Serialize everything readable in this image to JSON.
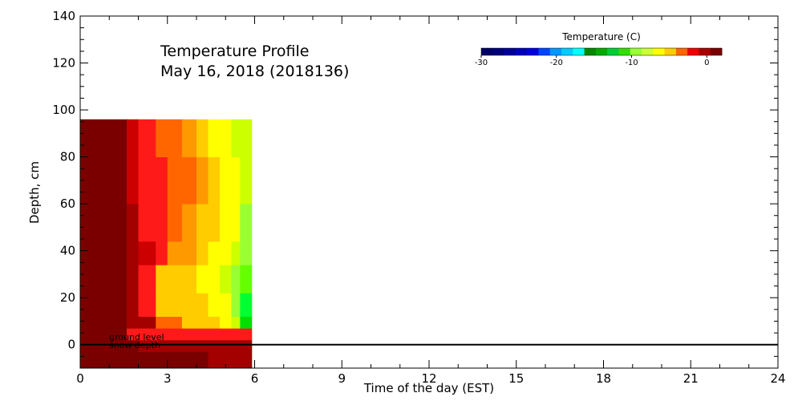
{
  "chart_data": {
    "type": "heatmap",
    "title": [
      "Temperature Profile",
      "May 16, 2018 (2018136)"
    ],
    "xlabel": "Time of the day (EST)",
    "ylabel": "Depth, cm",
    "xlim": [
      0,
      24
    ],
    "ylim": [
      -10,
      140
    ],
    "xticks": [
      0,
      3,
      6,
      9,
      12,
      15,
      18,
      21,
      24
    ],
    "yticks": [
      0,
      20,
      40,
      60,
      80,
      100,
      120,
      140
    ],
    "data_extent": {
      "x": [
        0,
        5.9
      ],
      "y": [
        -10,
        96
      ]
    },
    "depth_bands": [
      -10,
      -3,
      2,
      7,
      12,
      22,
      34,
      44,
      60,
      80,
      96
    ],
    "columns": [
      {
        "x": [
          0.0,
          1.6
        ],
        "colors": [
          "#7a0000",
          "#7a0000",
          "#7a0000",
          "#7a0000",
          "#7a0000",
          "#7a0000",
          "#7a0000",
          "#7a0000",
          "#7a0000",
          "#7a0000"
        ]
      },
      {
        "x": [
          1.6,
          2.0
        ],
        "colors": [
          "#7a0000",
          "#7a0000",
          "#ff1a1a",
          "#a30000",
          "#a30000",
          "#a30000",
          "#a30000",
          "#a30000",
          "#cc0000",
          "#cc0000"
        ]
      },
      {
        "x": [
          2.0,
          2.6
        ],
        "colors": [
          "#7a0000",
          "#a30000",
          "#ff1a1a",
          "#a30000",
          "#ff1a1a",
          "#ff1a1a",
          "#cc0000",
          "#ff1a1a",
          "#ff1a1a",
          "#ff1a1a"
        ]
      },
      {
        "x": [
          2.6,
          3.0
        ],
        "colors": [
          "#7a0000",
          "#a30000",
          "#ff1a1a",
          "#ff6600",
          "#ffcc00",
          "#ffcc00",
          "#ff1a1a",
          "#ff1a1a",
          "#ff1a1a",
          "#ff6600"
        ]
      },
      {
        "x": [
          3.0,
          3.5
        ],
        "colors": [
          "#7a0000",
          "#a30000",
          "#ff1a1a",
          "#ff6600",
          "#ffcc00",
          "#ffcc00",
          "#ff9900",
          "#ff6600",
          "#ff6600",
          "#ff6600"
        ]
      },
      {
        "x": [
          3.5,
          4.0
        ],
        "colors": [
          "#7a0000",
          "#a30000",
          "#ff1a1a",
          "#ffcc00",
          "#ffcc00",
          "#ffcc00",
          "#ff9900",
          "#ff9900",
          "#ff6600",
          "#ff9900"
        ]
      },
      {
        "x": [
          4.0,
          4.4
        ],
        "colors": [
          "#7a0000",
          "#a30000",
          "#ff1a1a",
          "#ffcc00",
          "#ffcc00",
          "#ffff00",
          "#ffcc00",
          "#ffcc00",
          "#ff9900",
          "#ffcc00"
        ]
      },
      {
        "x": [
          4.4,
          4.8
        ],
        "colors": [
          "#a30000",
          "#a30000",
          "#ff1a1a",
          "#ffcc00",
          "#ffff00",
          "#ffff00",
          "#ffff00",
          "#ffcc00",
          "#ffcc00",
          "#ffff00"
        ]
      },
      {
        "x": [
          4.8,
          5.2
        ],
        "colors": [
          "#a30000",
          "#a30000",
          "#ff1a1a",
          "#ffff00",
          "#ffff00",
          "#ccff00",
          "#ffff00",
          "#ffff00",
          "#ffff00",
          "#ffff00"
        ]
      },
      {
        "x": [
          5.2,
          5.5
        ],
        "colors": [
          "#a30000",
          "#a30000",
          "#ff1a1a",
          "#ccff00",
          "#99ff33",
          "#99ff33",
          "#ccff00",
          "#ffff00",
          "#ffff00",
          "#ccff00"
        ]
      },
      {
        "x": [
          5.5,
          5.9
        ],
        "colors": [
          "#a30000",
          "#a30000",
          "#ff1a1a",
          "#00e000",
          "#00ff33",
          "#66ff00",
          "#99ff33",
          "#99ff33",
          "#ccff00",
          "#ccff00"
        ]
      }
    ],
    "annotations": [
      "ground level",
      "snow depth"
    ],
    "reference_line_y": 0,
    "colorbar": {
      "title": "Temperature (C)",
      "tick_values": [
        -30,
        -20,
        -10,
        0
      ],
      "tick_labels": [
        "-30",
        "-20",
        "-10",
        "0"
      ],
      "range": [
        -30,
        2
      ],
      "colors": [
        "#000066",
        "#00007a",
        "#000099",
        "#0000bb",
        "#0000dd",
        "#0044ff",
        "#0099ff",
        "#00ccff",
        "#00ffff",
        "#008800",
        "#00aa00",
        "#00cc33",
        "#33dd00",
        "#99ff33",
        "#ccff33",
        "#ffff00",
        "#ffcc00",
        "#ff6600",
        "#ee0000",
        "#aa0000",
        "#7a0000"
      ]
    }
  }
}
